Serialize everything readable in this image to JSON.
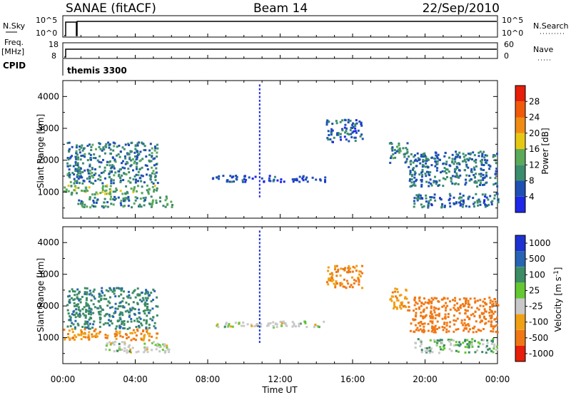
{
  "header": {
    "radar": "SANAE (fitACF)",
    "beam": "Beam 14",
    "date": "22/Sep/2010"
  },
  "top_panels": {
    "nsky_label": "N.Sky",
    "nsky_ticks": [
      "10^5",
      "10^0"
    ],
    "nsearch_label": "N.Search",
    "nsearch_ticks": [
      "10^5",
      "10^0"
    ],
    "freq_label": "Freq.",
    "freq_unit": "[MHz]",
    "freq_ticks": [
      "18",
      "8"
    ],
    "nave_label": "Nave",
    "nave_ticks": [
      "60",
      "0"
    ],
    "cpid_label": "CPID",
    "cpid_value": "themis 3300"
  },
  "axes": {
    "xlabel": "Time UT",
    "x_ticks": [
      "00:00",
      "04:00",
      "08:00",
      "12:00",
      "16:00",
      "20:00",
      "00:00"
    ],
    "ylabel": "Slant Range [km]",
    "y_ticks": [
      "1000",
      "2000",
      "3000",
      "4000"
    ]
  },
  "colorbars": {
    "power": {
      "label": "Power [dB]",
      "ticks": [
        "4",
        "8",
        "12",
        "16",
        "20",
        "24",
        "28"
      ],
      "colors": [
        "#1e28e6",
        "#1e50b4",
        "#3c8c6e",
        "#5aaa5a",
        "#e6c814",
        "#f08c14",
        "#f05a0a",
        "#e61e0a"
      ]
    },
    "velocity": {
      "label": "Velocity [m s^-1]",
      "ticks": [
        "1000",
        "500",
        "100",
        "25",
        "-25",
        "-100",
        "-500",
        "-1000"
      ],
      "colors": [
        "#1e32d2",
        "#2864b4",
        "#3c8c64",
        "#64c832",
        "#c8c8c8",
        "#f0a014",
        "#f07814",
        "#e61e0a"
      ]
    }
  },
  "chart_data": [
    {
      "type": "heatmap",
      "title": "Power",
      "xlabel": "Time UT",
      "ylabel": "Slant Range [km]",
      "xlim": [
        0,
        24
      ],
      "ylim": [
        180,
        4500
      ],
      "colorbar": "Power [dB]",
      "regions": [
        {
          "t": [
            0.0,
            5.2
          ],
          "range": [
            950,
            1250
          ],
          "value_db": 14
        },
        {
          "t": [
            0.2,
            5.2
          ],
          "range": [
            1300,
            2600
          ],
          "value_db": 9
        },
        {
          "t": [
            0.8,
            6.0
          ],
          "range": [
            550,
            900
          ],
          "value_db": 10
        },
        {
          "t": [
            8.2,
            14.5
          ],
          "range": [
            1350,
            1550
          ],
          "value_db": 5
        },
        {
          "t": [
            14.5,
            16.5
          ],
          "range": [
            2600,
            3300
          ],
          "value_db": 7
        },
        {
          "t": [
            18.0,
            19.0
          ],
          "range": [
            1900,
            2600
          ],
          "value_db": 10
        },
        {
          "t": [
            19.0,
            24.0
          ],
          "range": [
            1200,
            2300
          ],
          "value_db": 8
        },
        {
          "t": [
            19.3,
            24.0
          ],
          "range": [
            550,
            1000
          ],
          "value_db": 7
        }
      ]
    },
    {
      "type": "heatmap",
      "title": "Velocity",
      "xlabel": "Time UT",
      "ylabel": "Slant Range [km]",
      "xlim": [
        0,
        24
      ],
      "ylim": [
        180,
        4500
      ],
      "colorbar": "Velocity [m s^-1]",
      "regions": [
        {
          "t": [
            0.0,
            5.2
          ],
          "range": [
            950,
            1300
          ],
          "value_ms": -100
        },
        {
          "t": [
            0.2,
            5.2
          ],
          "range": [
            1300,
            2600
          ],
          "value_ms": 80
        },
        {
          "t": [
            2.2,
            6.0
          ],
          "range": [
            550,
            900
          ],
          "value_ms": 0
        },
        {
          "t": [
            8.2,
            14.5
          ],
          "range": [
            1350,
            1550
          ],
          "value_ms": 0
        },
        {
          "t": [
            14.5,
            16.5
          ],
          "range": [
            2600,
            3300
          ],
          "value_ms": -120
        },
        {
          "t": [
            18.0,
            19.0
          ],
          "range": [
            1900,
            2600
          ],
          "value_ms": -80
        },
        {
          "t": [
            19.0,
            24.0
          ],
          "range": [
            1200,
            2300
          ],
          "value_ms": -300
        },
        {
          "t": [
            19.3,
            24.0
          ],
          "range": [
            550,
            1000
          ],
          "value_ms": 20
        }
      ]
    }
  ]
}
